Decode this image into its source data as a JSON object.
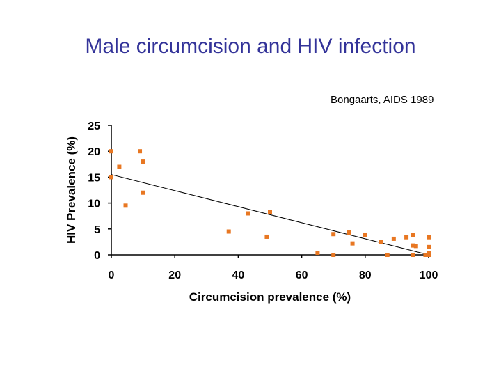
{
  "slide": {
    "title": "Male circumcision and HIV infection",
    "citation": "Bongaarts, AIDS 1989"
  },
  "chart_data": {
    "type": "scatter",
    "title": "",
    "xlabel": "Circumcision prevalence (%)",
    "ylabel": "HIV Prevalence (%)",
    "xlim": [
      0,
      100
    ],
    "ylim": [
      0,
      25
    ],
    "xticks": [
      0,
      20,
      40,
      60,
      80,
      100
    ],
    "yticks": [
      0,
      5,
      10,
      15,
      20,
      25
    ],
    "grid": false,
    "legend": "none",
    "marker_color": "#e87722",
    "trendline": {
      "x": [
        0,
        100
      ],
      "y": [
        15.5,
        0
      ]
    },
    "points": [
      {
        "x": 0,
        "y": 20
      },
      {
        "x": 0,
        "y": 15
      },
      {
        "x": 2.5,
        "y": 17
      },
      {
        "x": 4.5,
        "y": 9.5
      },
      {
        "x": 9,
        "y": 20
      },
      {
        "x": 10,
        "y": 18
      },
      {
        "x": 10,
        "y": 12
      },
      {
        "x": 37,
        "y": 4.5
      },
      {
        "x": 43,
        "y": 8
      },
      {
        "x": 49,
        "y": 3.5
      },
      {
        "x": 50,
        "y": 8.3
      },
      {
        "x": 65,
        "y": 0.4
      },
      {
        "x": 70,
        "y": 4
      },
      {
        "x": 70,
        "y": 0
      },
      {
        "x": 75,
        "y": 4.3
      },
      {
        "x": 76,
        "y": 2.2
      },
      {
        "x": 80,
        "y": 3.9
      },
      {
        "x": 85,
        "y": 2.5
      },
      {
        "x": 87,
        "y": 0
      },
      {
        "x": 89,
        "y": 3.1
      },
      {
        "x": 93,
        "y": 3.4
      },
      {
        "x": 95,
        "y": 3.8
      },
      {
        "x": 95,
        "y": 1.8
      },
      {
        "x": 96,
        "y": 1.7
      },
      {
        "x": 95,
        "y": 0
      },
      {
        "x": 99,
        "y": 0
      },
      {
        "x": 100,
        "y": 3.4
      },
      {
        "x": 100,
        "y": 1.5
      },
      {
        "x": 100,
        "y": 0.4
      },
      {
        "x": 100,
        "y": 0
      }
    ]
  }
}
